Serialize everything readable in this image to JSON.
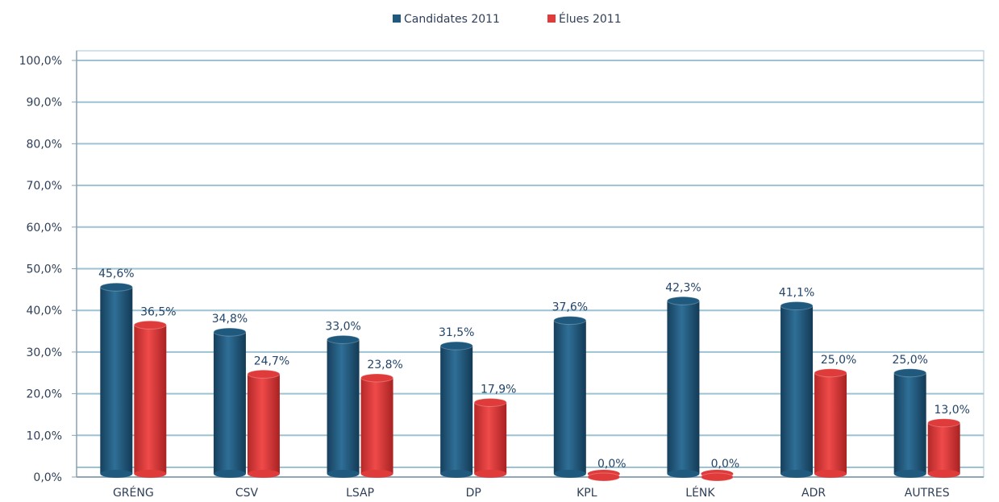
{
  "chart_data": {
    "type": "bar",
    "categories": [
      "GRÉNG",
      "CSV",
      "LSAP",
      "DP",
      "KPL",
      "LÉNK",
      "ADR",
      "AUTRES"
    ],
    "series": [
      {
        "name": "Candidates 2011",
        "color": "#1f5a7e",
        "values": [
          45.6,
          34.8,
          33.0,
          31.5,
          37.6,
          42.3,
          41.1,
          25.0
        ],
        "labels": [
          "45,6%",
          "34,8%",
          "33,0%",
          "31,5%",
          "37,6%",
          "42,3%",
          "41,1%",
          "25,0%"
        ]
      },
      {
        "name": "Élues 2011",
        "color": "#e03b3b",
        "values": [
          36.5,
          24.7,
          23.8,
          17.9,
          0.0,
          0.0,
          25.0,
          13.0
        ],
        "labels": [
          "36,5%",
          "24,7%",
          "23,8%",
          "17,9%",
          "0,0%",
          "0,0%",
          "25,0%",
          "13,0%"
        ]
      }
    ],
    "ylim": [
      0,
      100
    ],
    "yticks": [
      "0,0%",
      "10,0%",
      "20,0%",
      "30,0%",
      "40,0%",
      "50,0%",
      "60,0%",
      "70,0%",
      "80,0%",
      "90,0%",
      "100,0%"
    ],
    "legend": "top-center",
    "grid": true,
    "title": "",
    "xlabel": "",
    "ylabel": ""
  }
}
